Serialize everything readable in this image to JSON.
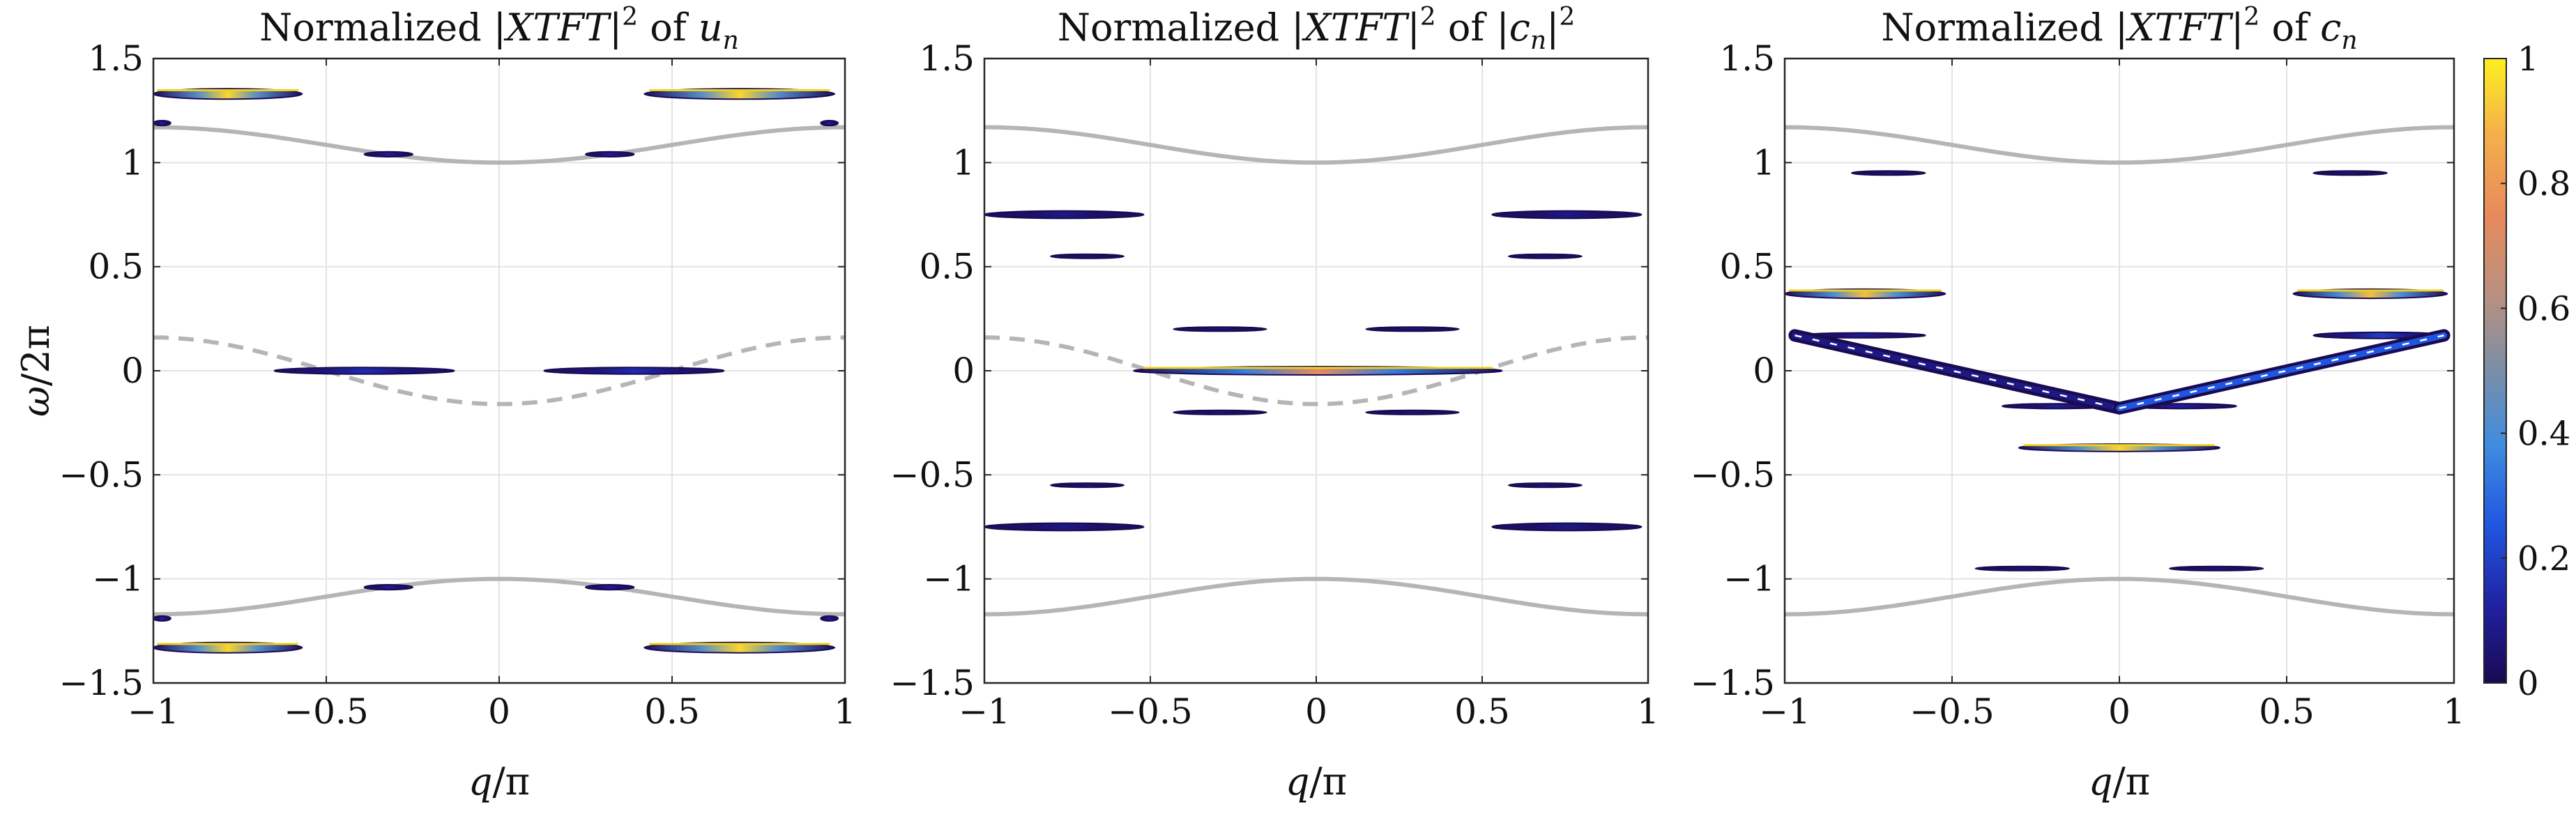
{
  "chart_data": [
    {
      "type": "heatmap",
      "title": {
        "pre": "Normalized |",
        "var": "XTFT",
        "sup": "2",
        "mid": " of ",
        "tvar": "u",
        "tsub": "n",
        "tpost": ""
      },
      "title_text": "Normalized |XTFT|^2 of u_n",
      "xlabel": {
        "a": "q",
        "b": "/π"
      },
      "ylabel": {
        "a": "ω",
        "b": "/2π"
      },
      "xlim": [
        -1,
        1
      ],
      "ylim": [
        -1.5,
        1.5
      ],
      "xticks": [
        "−1",
        "−0.5",
        "0",
        "0.5",
        "1"
      ],
      "yticks": [
        "−1.5",
        "−1",
        "−0.5",
        "0",
        "0.5",
        "1",
        "1.5"
      ],
      "grid": true,
      "curves": [
        {
          "name": "",
          "style": "solid",
          "color": "#b5b5b5",
          "func": "upper"
        },
        {
          "name": "",
          "style": "solid",
          "color": "#b5b5b5",
          "func": "lower"
        },
        {
          "name": "",
          "style": "dashed",
          "color": "#b5b5b5",
          "func": "mid"
        }
      ],
      "bands": [
        {
          "x0": -1.0,
          "x1": -0.57,
          "y": 1.33,
          "h": 0.025,
          "peak": 0.95
        },
        {
          "x0": 0.42,
          "x1": 0.97,
          "y": 1.33,
          "h": 0.025,
          "peak": 0.95
        },
        {
          "x0": -1.0,
          "x1": -0.95,
          "y": 1.19,
          "h": 0.012,
          "peak": 0.1
        },
        {
          "x0": 0.93,
          "x1": 0.98,
          "y": 1.19,
          "h": 0.012,
          "peak": 0.1
        },
        {
          "x0": -0.39,
          "x1": -0.25,
          "y": 1.04,
          "h": 0.012,
          "peak": 0.1
        },
        {
          "x0": 0.25,
          "x1": 0.39,
          "y": 1.04,
          "h": 0.012,
          "peak": 0.1
        },
        {
          "x0": -0.65,
          "x1": -0.13,
          "y": 0.0,
          "h": 0.016,
          "peak": 0.15
        },
        {
          "x0": 0.13,
          "x1": 0.65,
          "y": 0.0,
          "h": 0.016,
          "peak": 0.15
        },
        {
          "x0": -1.0,
          "x1": -0.95,
          "y": -1.19,
          "h": 0.012,
          "peak": 0.1
        },
        {
          "x0": 0.93,
          "x1": 0.98,
          "y": -1.19,
          "h": 0.012,
          "peak": 0.1
        },
        {
          "x0": -0.39,
          "x1": -0.25,
          "y": -1.04,
          "h": 0.012,
          "peak": 0.1
        },
        {
          "x0": 0.25,
          "x1": 0.39,
          "y": -1.04,
          "h": 0.012,
          "peak": 0.1
        },
        {
          "x0": -1.0,
          "x1": -0.57,
          "y": -1.33,
          "h": 0.025,
          "peak": 0.95
        },
        {
          "x0": 0.42,
          "x1": 0.97,
          "y": -1.33,
          "h": 0.025,
          "peak": 0.95
        }
      ]
    },
    {
      "type": "heatmap",
      "title": {
        "pre": "Normalized |",
        "var": "XTFT",
        "sup": "2",
        "mid": " of |",
        "tvar": "c",
        "tsub": "n",
        "tpost": "|",
        "tpostsup": "2"
      },
      "title_text": "Normalized |XTFT|^2 of |c_n|^2",
      "xlabel": {
        "a": "q",
        "b": "/π"
      },
      "xlim": [
        -1,
        1
      ],
      "ylim": [
        -1.5,
        1.5
      ],
      "xticks": [
        "−1",
        "−0.5",
        "0",
        "0.5",
        "1"
      ],
      "yticks": [
        "−1.5",
        "−1",
        "−0.5",
        "0",
        "0.5",
        "1",
        "1.5"
      ],
      "grid": true,
      "curves": [
        {
          "name": "",
          "style": "solid",
          "color": "#b5b5b5",
          "func": "upper"
        },
        {
          "name": "",
          "style": "solid",
          "color": "#b5b5b5",
          "func": "lower"
        },
        {
          "name": "",
          "style": "dashed",
          "color": "#b5b5b5",
          "func": "mid"
        }
      ],
      "bands": [
        {
          "x0": -1.0,
          "x1": -0.52,
          "y": 0.75,
          "h": 0.018,
          "peak": 0.08
        },
        {
          "x0": 0.53,
          "x1": 0.98,
          "y": 0.75,
          "h": 0.018,
          "peak": 0.08
        },
        {
          "x0": -0.8,
          "x1": -0.58,
          "y": 0.55,
          "h": 0.01,
          "peak": 0.05
        },
        {
          "x0": 0.58,
          "x1": 0.8,
          "y": 0.55,
          "h": 0.01,
          "peak": 0.05
        },
        {
          "x0": -0.43,
          "x1": -0.15,
          "y": 0.2,
          "h": 0.01,
          "peak": 0.05
        },
        {
          "x0": 0.15,
          "x1": 0.43,
          "y": 0.2,
          "h": 0.01,
          "peak": 0.05
        },
        {
          "x0": -0.55,
          "x1": 0.56,
          "y": 0.0,
          "h": 0.02,
          "peak": 0.75
        },
        {
          "x0": -0.43,
          "x1": -0.15,
          "y": -0.2,
          "h": 0.01,
          "peak": 0.05
        },
        {
          "x0": 0.15,
          "x1": 0.43,
          "y": -0.2,
          "h": 0.01,
          "peak": 0.05
        },
        {
          "x0": -0.8,
          "x1": -0.58,
          "y": -0.55,
          "h": 0.01,
          "peak": 0.05
        },
        {
          "x0": 0.58,
          "x1": 0.8,
          "y": -0.55,
          "h": 0.01,
          "peak": 0.05
        },
        {
          "x0": -1.0,
          "x1": -0.52,
          "y": -0.75,
          "h": 0.018,
          "peak": 0.08
        },
        {
          "x0": 0.53,
          "x1": 0.98,
          "y": -0.75,
          "h": 0.018,
          "peak": 0.08
        }
      ]
    },
    {
      "type": "heatmap",
      "title": {
        "pre": "Normalized |",
        "var": "XTFT",
        "sup": "2",
        "mid": " of ",
        "tvar": "c",
        "tsub": "n",
        "tpost": ""
      },
      "title_text": "Normalized |XTFT|^2 of c_n",
      "xlabel": {
        "a": "q",
        "b": "/π"
      },
      "xlim": [
        -1,
        1
      ],
      "ylim": [
        -1.5,
        1.5
      ],
      "xticks": [
        "−1",
        "−0.5",
        "0",
        "0.5",
        "1"
      ],
      "yticks": [
        "−1.5",
        "−1",
        "−0.5",
        "0",
        "0.5",
        "1",
        "1.5"
      ],
      "grid": true,
      "curves": [
        {
          "name": "",
          "style": "solid",
          "color": "#b5b5b5",
          "func": "upper"
        },
        {
          "name": "",
          "style": "solid",
          "color": "#b5b5b5",
          "func": "lower"
        }
      ],
      "bands": [
        {
          "x0": -0.8,
          "x1": -0.58,
          "y": 0.95,
          "h": 0.01,
          "peak": 0.05
        },
        {
          "x0": 0.58,
          "x1": 0.8,
          "y": 0.95,
          "h": 0.01,
          "peak": 0.05
        },
        {
          "x0": -1.0,
          "x1": -0.52,
          "y": 0.37,
          "h": 0.022,
          "peak": 0.9
        },
        {
          "x0": 0.52,
          "x1": 0.98,
          "y": 0.37,
          "h": 0.022,
          "peak": 0.9
        },
        {
          "x0": -0.96,
          "x1": -0.58,
          "y": 0.17,
          "h": 0.012,
          "peak": 0.1
        },
        {
          "x0": 0.58,
          "x1": 0.98,
          "y": 0.17,
          "h": 0.015,
          "peak": 0.2
        },
        {
          "x0": -0.35,
          "x1": -0.02,
          "y": -0.17,
          "h": 0.012,
          "peak": 0.1
        },
        {
          "x0": 0.02,
          "x1": 0.35,
          "y": -0.17,
          "h": 0.012,
          "peak": 0.12
        },
        {
          "x0": -0.3,
          "x1": 0.3,
          "y": -0.37,
          "h": 0.018,
          "peak": 0.95
        },
        {
          "x0": -0.43,
          "x1": -0.15,
          "y": -0.95,
          "h": 0.01,
          "peak": 0.05
        },
        {
          "x0": 0.15,
          "x1": 0.43,
          "y": -0.95,
          "h": 0.01,
          "peak": 0.05
        }
      ],
      "diagonal": {
        "left": {
          "from": [
            -0.97,
            0.17
          ],
          "to": [
            0.0,
            -0.18
          ],
          "peak": 0.08
        },
        "right": {
          "from": [
            0.0,
            -0.18
          ],
          "to": [
            0.97,
            0.17
          ],
          "peak": 0.25
        }
      }
    }
  ],
  "colorbar": {
    "ticks": [
      "0",
      "0.2",
      "0.4",
      "0.6",
      "0.8",
      "1"
    ],
    "range": [
      0,
      1
    ],
    "stops": [
      "#1a0a50",
      "#2020a0",
      "#2055e0",
      "#3f8ce0",
      "#7a8ea8",
      "#b89080",
      "#e88a5c",
      "#f5b04a",
      "#fdf020"
    ]
  }
}
